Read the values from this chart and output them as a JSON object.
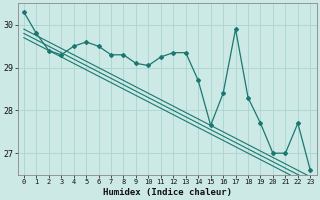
{
  "x": [
    0,
    1,
    2,
    3,
    4,
    5,
    6,
    7,
    8,
    9,
    10,
    11,
    12,
    13,
    14,
    15,
    16,
    17,
    18,
    19,
    20,
    21,
    22,
    23
  ],
  "line_main": [
    30.3,
    29.8,
    29.4,
    29.3,
    29.5,
    29.6,
    29.5,
    29.3,
    29.3,
    29.1,
    29.05,
    29.25,
    29.35,
    29.35,
    28.7,
    27.65,
    28.4,
    29.9,
    28.3,
    27.7,
    27.0,
    27.0,
    27.7,
    26.6
  ],
  "line_trend1": [
    29.9,
    29.75,
    29.6,
    29.45,
    29.3,
    29.15,
    29.0,
    28.85,
    28.7,
    28.55,
    28.4,
    28.25,
    28.1,
    27.95,
    27.8,
    27.65,
    27.5,
    27.35,
    27.2,
    27.05,
    26.9,
    26.75,
    26.6,
    26.45
  ],
  "line_trend2": [
    29.8,
    29.65,
    29.5,
    29.35,
    29.2,
    29.05,
    28.9,
    28.75,
    28.6,
    28.45,
    28.3,
    28.15,
    28.0,
    27.85,
    27.7,
    27.55,
    27.4,
    27.25,
    27.1,
    26.95,
    26.8,
    26.65,
    26.5,
    26.35
  ],
  "line_trend3": [
    29.7,
    29.55,
    29.4,
    29.25,
    29.1,
    28.95,
    28.8,
    28.65,
    28.5,
    28.35,
    28.2,
    28.05,
    27.9,
    27.75,
    27.6,
    27.45,
    27.3,
    27.15,
    27.0,
    26.85,
    26.7,
    26.55,
    26.4,
    26.25
  ],
  "bg_color": "#cce9e5",
  "grid_color_major": "#aad4d0",
  "grid_color_minor": "#bbdeda",
  "line_color": "#1a7870",
  "xlabel": "Humidex (Indice chaleur)",
  "ylim": [
    26.5,
    30.5
  ],
  "xlim": [
    -0.5,
    23.5
  ],
  "yticks": [
    27,
    28,
    29,
    30
  ],
  "xticks": [
    0,
    1,
    2,
    3,
    4,
    5,
    6,
    7,
    8,
    9,
    10,
    11,
    12,
    13,
    14,
    15,
    16,
    17,
    18,
    19,
    20,
    21,
    22,
    23
  ],
  "figsize": [
    3.2,
    2.0
  ],
  "dpi": 100
}
